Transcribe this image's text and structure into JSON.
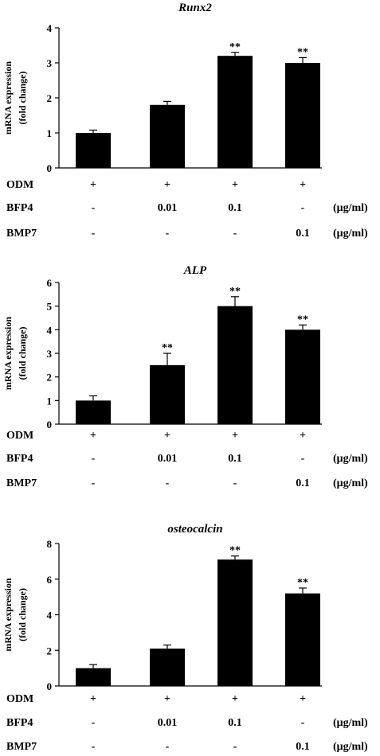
{
  "chart_data": [
    {
      "type": "bar",
      "title": "Runx2",
      "ylabel_line1": "mRNA expression",
      "ylabel_line2": "(fold change)",
      "ylim": [
        0,
        4
      ],
      "yticks": [
        "0",
        "1",
        "2",
        "3",
        "4"
      ],
      "values": [
        1.0,
        1.8,
        3.2,
        3.0
      ],
      "errors": [
        0.08,
        0.1,
        0.1,
        0.15
      ],
      "significance": [
        "",
        "",
        "**",
        "**"
      ],
      "treatments": [
        {
          "name": "ODM",
          "values": [
            "+",
            "+",
            "+",
            "+"
          ],
          "unit": ""
        },
        {
          "name": "BFP4",
          "values": [
            "-",
            "0.01",
            "0.1",
            "-"
          ],
          "unit": "(μg/ml)"
        },
        {
          "name": "BMP7",
          "values": [
            "-",
            "-",
            "-",
            "0.1"
          ],
          "unit": "(μg/ml)"
        }
      ]
    },
    {
      "type": "bar",
      "title": "ALP",
      "ylabel_line1": "mRNA expression",
      "ylabel_line2": "(fold change)",
      "ylim": [
        0,
        6
      ],
      "yticks": [
        "0",
        "1",
        "2",
        "3",
        "4",
        "5",
        "6"
      ],
      "values": [
        1.0,
        2.5,
        5.0,
        4.0
      ],
      "errors": [
        0.2,
        0.5,
        0.4,
        0.2
      ],
      "significance": [
        "",
        "**",
        "**",
        "**"
      ],
      "treatments": [
        {
          "name": "ODM",
          "values": [
            "+",
            "+",
            "+",
            "+"
          ],
          "unit": ""
        },
        {
          "name": "BFP4",
          "values": [
            "-",
            "0.01",
            "0.1",
            "-"
          ],
          "unit": "(μg/ml)"
        },
        {
          "name": "BMP7",
          "values": [
            "-",
            "-",
            "-",
            "0.1"
          ],
          "unit": "(μg/ml)"
        }
      ]
    },
    {
      "type": "bar",
      "title": "osteocalcin",
      "ylabel_line1": "mRNA expression",
      "ylabel_line2": "(fold change)",
      "ylim": [
        0,
        8
      ],
      "yticks": [
        "0",
        "2",
        "4",
        "6",
        "8"
      ],
      "values": [
        1.0,
        2.1,
        7.1,
        5.2
      ],
      "errors": [
        0.2,
        0.2,
        0.2,
        0.3
      ],
      "significance": [
        "",
        "",
        "**",
        "**"
      ],
      "treatments": [
        {
          "name": "ODM",
          "values": [
            "+",
            "+",
            "+",
            "+"
          ],
          "unit": ""
        },
        {
          "name": "BFP4",
          "values": [
            "-",
            "0.01",
            "0.1",
            "-"
          ],
          "unit": "(μg/ml)"
        },
        {
          "name": "BMP7",
          "values": [
            "-",
            "-",
            "-",
            "0.1"
          ],
          "unit": "(μg/ml)"
        }
      ]
    }
  ]
}
